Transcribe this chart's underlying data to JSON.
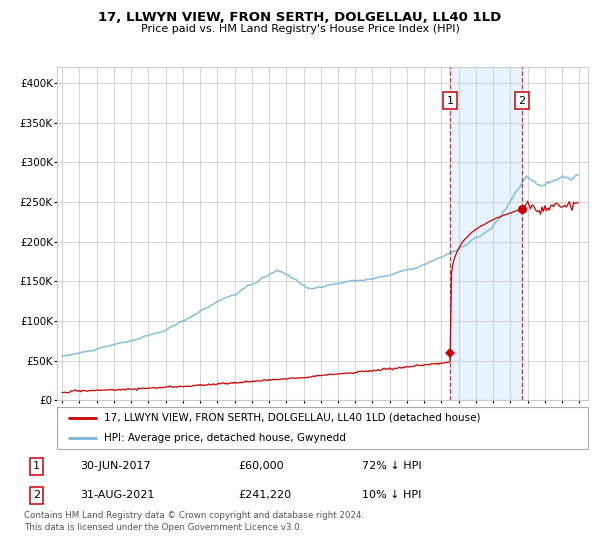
{
  "title": "17, LLWYN VIEW, FRON SERTH, DOLGELLAU, LL40 1LD",
  "subtitle": "Price paid vs. HM Land Registry's House Price Index (HPI)",
  "ylim": [
    0,
    420000
  ],
  "xlim_start": 1994.7,
  "xlim_end": 2025.5,
  "yticks": [
    0,
    50000,
    100000,
    150000,
    200000,
    250000,
    300000,
    350000,
    400000
  ],
  "ytick_labels": [
    "£0",
    "£50K",
    "£100K",
    "£150K",
    "£200K",
    "£250K",
    "£300K",
    "£350K",
    "£400K"
  ],
  "hpi_color": "#7ab8d9",
  "price_color": "#cc0000",
  "marker_color": "#cc0000",
  "vline_color": "#cc0000",
  "shade_color": "#ddeeff",
  "point1_x": 2017.5,
  "point1_y": 60000,
  "point2_x": 2021.67,
  "point2_y": 241220,
  "legend_price_label": "17, LLWYN VIEW, FRON SERTH, DOLGELLAU, LL40 1LD (detached house)",
  "legend_hpi_label": "HPI: Average price, detached house, Gwynedd",
  "table_row1": [
    "1",
    "30-JUN-2017",
    "£60,000",
    "72% ↓ HPI"
  ],
  "table_row2": [
    "2",
    "31-AUG-2021",
    "£241,220",
    "10% ↓ HPI"
  ],
  "footnote": "Contains HM Land Registry data © Crown copyright and database right 2024.\nThis data is licensed under the Open Government Licence v3.0.",
  "grid_color": "#cccccc",
  "hatch_color": "#bbbbbb"
}
